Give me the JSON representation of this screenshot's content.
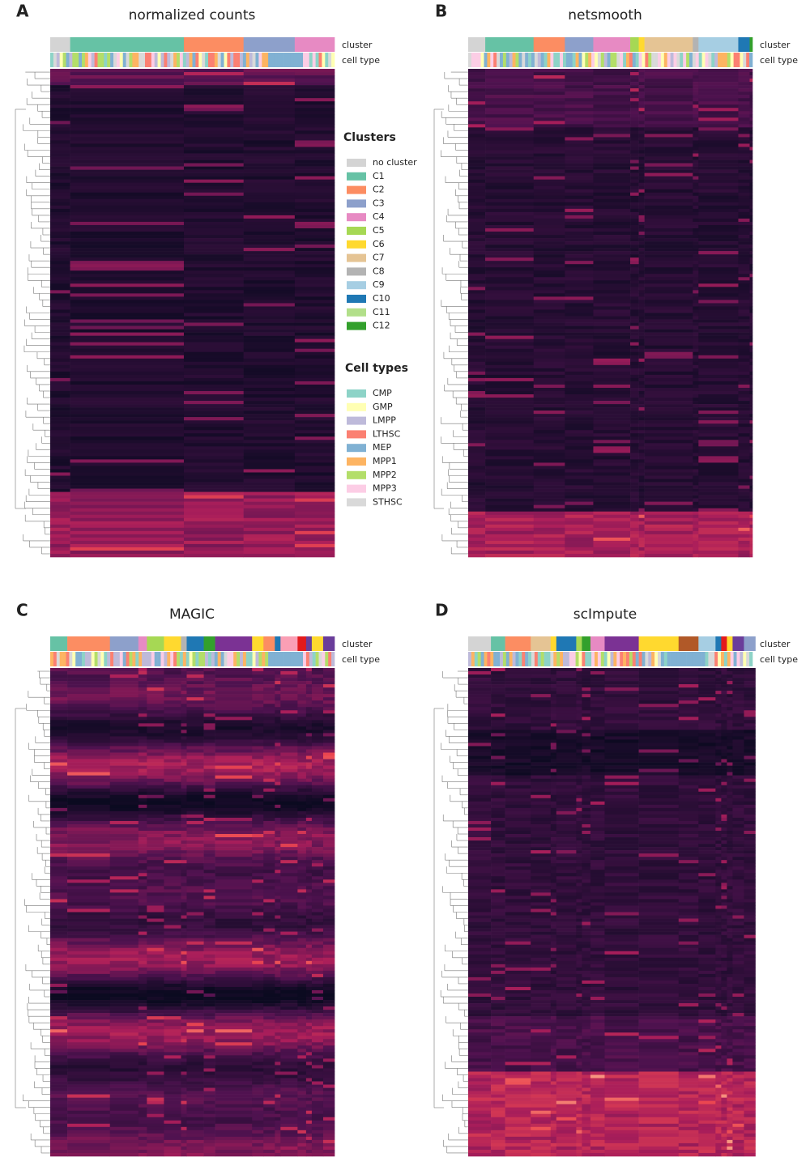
{
  "panels": [
    {
      "letter": "A",
      "title": "normalized counts",
      "row_labels": [
        "cluster",
        "cell type"
      ]
    },
    {
      "letter": "B",
      "title": "netsmooth",
      "row_labels": [
        "cluster",
        "cell type"
      ]
    },
    {
      "letter": "C",
      "title": "MAGIC",
      "row_labels": [
        "cluster",
        "cell type"
      ]
    },
    {
      "letter": "D",
      "title": "scImpute",
      "row_labels": [
        "cluster",
        "cell type"
      ]
    }
  ],
  "legend": {
    "clusters": {
      "title": "Clusters",
      "items": [
        {
          "label": "no cluster",
          "color": "#d4d4d4"
        },
        {
          "label": "C1",
          "color": "#66c2a5"
        },
        {
          "label": "C2",
          "color": "#fc8d62"
        },
        {
          "label": "C3",
          "color": "#8da0cb"
        },
        {
          "label": "C4",
          "color": "#e78ac3"
        },
        {
          "label": "C5",
          "color": "#a6d854"
        },
        {
          "label": "C6",
          "color": "#ffd92f"
        },
        {
          "label": "C7",
          "color": "#e5c494"
        },
        {
          "label": "C8",
          "color": "#b3b3b3"
        },
        {
          "label": "C9",
          "color": "#a6cee3"
        },
        {
          "label": "C10",
          "color": "#1f78b4"
        },
        {
          "label": "C11",
          "color": "#b2df8a"
        },
        {
          "label": "C12",
          "color": "#33a02c"
        }
      ]
    },
    "cell_types": {
      "title": "Cell types",
      "items": [
        {
          "label": "CMP",
          "color": "#8dd3c7"
        },
        {
          "label": "GMP",
          "color": "#ffffb3"
        },
        {
          "label": "LMPP",
          "color": "#bebada"
        },
        {
          "label": "LTHSC",
          "color": "#fb8072"
        },
        {
          "label": "MEP",
          "color": "#80b1d3"
        },
        {
          "label": "MPP1",
          "color": "#fdb462"
        },
        {
          "label": "MPP2",
          "color": "#b3de69"
        },
        {
          "label": "MPP3",
          "color": "#fccde5"
        },
        {
          "label": "STHSC",
          "color": "#d9d9d9"
        }
      ]
    }
  }
}
